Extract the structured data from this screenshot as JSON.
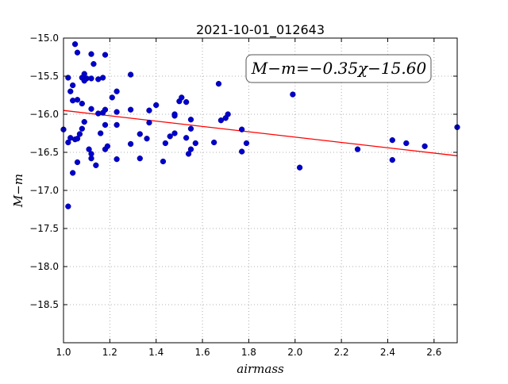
{
  "chart_data": {
    "type": "scatter",
    "title": "2021-10-01_012643",
    "xlabel": "airmass",
    "ylabel": "M−m",
    "xlim": [
      1.0,
      2.7
    ],
    "ylim": [
      -19.0,
      -15.0
    ],
    "y_inverted": true,
    "grid": true,
    "xticks": [
      1.0,
      1.2,
      1.4,
      1.6,
      1.8,
      2.0,
      2.2,
      2.4,
      2.6
    ],
    "xtick_labels": [
      "1.0",
      "1.2",
      "1.4",
      "1.6",
      "1.8",
      "2.0",
      "2.2",
      "2.4",
      "2.6"
    ],
    "yticks": [
      -15.0,
      -15.5,
      -16.0,
      -16.5,
      -17.0,
      -17.5,
      -18.0,
      -18.5
    ],
    "ytick_labels": [
      "−15.0",
      "−15.5",
      "−16.0",
      "−16.5",
      "−17.0",
      "−17.5",
      "−18.0",
      "−18.5"
    ],
    "annotation": "M−m=−0.35χ−15.60",
    "fit": {
      "slope": -0.35,
      "intercept": -15.6,
      "color": "#ff0000"
    },
    "point_color": "#0000cc",
    "points": [
      [
        1.06,
        -14.98
      ],
      [
        1.05,
        -15.08
      ],
      [
        1.06,
        -15.19
      ],
      [
        1.12,
        -15.21
      ],
      [
        1.18,
        -15.22
      ],
      [
        1.13,
        -15.34
      ],
      [
        1.09,
        -15.47
      ],
      [
        1.08,
        -15.52
      ],
      [
        1.1,
        -15.53
      ],
      [
        1.12,
        -15.53
      ],
      [
        1.15,
        -15.54
      ],
      [
        1.17,
        -15.52
      ],
      [
        1.09,
        -15.56
      ],
      [
        1.02,
        -15.52
      ],
      [
        1.04,
        -15.62
      ],
      [
        1.03,
        -15.7
      ],
      [
        1.23,
        -15.7
      ],
      [
        1.29,
        -15.48
      ],
      [
        1.21,
        -15.78
      ],
      [
        1.04,
        -15.82
      ],
      [
        1.06,
        -15.81
      ],
      [
        1.08,
        -15.86
      ],
      [
        1.12,
        -15.93
      ],
      [
        1.15,
        -15.99
      ],
      [
        1.17,
        -15.98
      ],
      [
        1.18,
        -15.94
      ],
      [
        1.23,
        -15.97
      ],
      [
        1.29,
        -15.94
      ],
      [
        1.37,
        -15.95
      ],
      [
        1.4,
        -15.88
      ],
      [
        1.37,
        -16.11
      ],
      [
        1.48,
        -16.02
      ],
      [
        1.48,
        -16.0
      ],
      [
        1.5,
        -15.83
      ],
      [
        1.51,
        -15.78
      ],
      [
        1.53,
        -15.84
      ],
      [
        1.55,
        -16.07
      ],
      [
        1.67,
        -15.6
      ],
      [
        1.68,
        -16.08
      ],
      [
        1.7,
        -16.05
      ],
      [
        1.71,
        -16.0
      ],
      [
        1.77,
        -16.2
      ],
      [
        1.99,
        -15.74
      ],
      [
        1.0,
        -16.2
      ],
      [
        1.08,
        -16.19
      ],
      [
        1.09,
        -16.1
      ],
      [
        1.18,
        -16.14
      ],
      [
        1.23,
        -16.14
      ],
      [
        1.02,
        -16.37
      ],
      [
        1.03,
        -16.31
      ],
      [
        1.05,
        -16.33
      ],
      [
        1.06,
        -16.32
      ],
      [
        1.07,
        -16.26
      ],
      [
        1.16,
        -16.25
      ],
      [
        1.33,
        -16.26
      ],
      [
        1.36,
        -16.32
      ],
      [
        1.46,
        -16.29
      ],
      [
        1.48,
        -16.25
      ],
      [
        1.53,
        -16.31
      ],
      [
        1.55,
        -16.19
      ],
      [
        1.29,
        -16.39
      ],
      [
        1.44,
        -16.38
      ],
      [
        1.57,
        -16.38
      ],
      [
        1.55,
        -16.46
      ],
      [
        1.65,
        -16.37
      ],
      [
        1.79,
        -16.38
      ],
      [
        1.11,
        -16.46
      ],
      [
        1.12,
        -16.52
      ],
      [
        1.18,
        -16.46
      ],
      [
        1.19,
        -16.42
      ],
      [
        1.06,
        -16.63
      ],
      [
        1.12,
        -16.58
      ],
      [
        1.14,
        -16.67
      ],
      [
        1.23,
        -16.59
      ],
      [
        1.33,
        -16.58
      ],
      [
        1.43,
        -16.62
      ],
      [
        1.54,
        -16.52
      ],
      [
        1.77,
        -16.49
      ],
      [
        1.04,
        -16.77
      ],
      [
        1.02,
        -17.21
      ],
      [
        2.02,
        -16.7
      ],
      [
        2.27,
        -16.46
      ],
      [
        2.42,
        -16.34
      ],
      [
        2.42,
        -16.6
      ],
      [
        2.48,
        -16.38
      ],
      [
        2.56,
        -16.42
      ],
      [
        2.7,
        -16.17
      ]
    ]
  }
}
